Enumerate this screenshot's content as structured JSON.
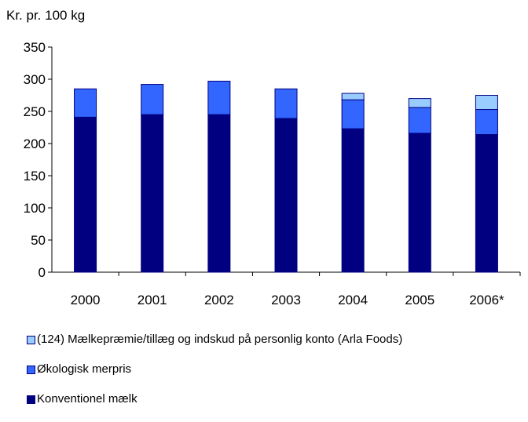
{
  "chart_data": {
    "type": "bar",
    "stacked": true,
    "ylabel": "Kr. pr. 100 kg",
    "ylim": [
      0,
      350
    ],
    "yticks": [
      0,
      50,
      100,
      150,
      200,
      250,
      300,
      350
    ],
    "grid": false,
    "legend_position": "bottom",
    "categories": [
      "2000",
      "2001",
      "2002",
      "2003",
      "2004",
      "2005",
      "2006*"
    ],
    "series": [
      {
        "name": "Konventionel mælk",
        "color": "#000080",
        "values": [
          241,
          245,
          245,
          239,
          223,
          216,
          214
        ]
      },
      {
        "name": "Økologisk merpris",
        "color": "#3366ff",
        "values": [
          44,
          47,
          52,
          46,
          45,
          40,
          39
        ]
      },
      {
        "name": "(124) Mælkepræmie/tillæg og indskud på personlig konto (Arla Foods)",
        "color": "#99ccff",
        "values": [
          0,
          0,
          0,
          0,
          10,
          14,
          22
        ]
      }
    ]
  },
  "legend_order": [
    2,
    1,
    0
  ]
}
